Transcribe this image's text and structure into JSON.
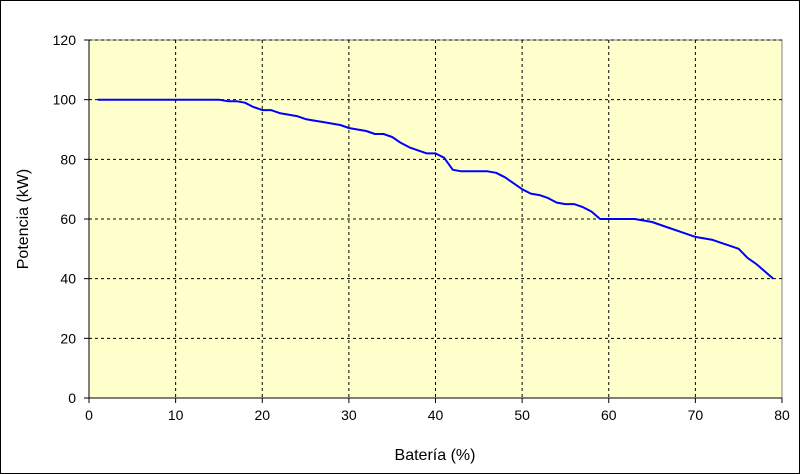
{
  "chart_data": {
    "type": "line",
    "title": "",
    "xlabel": "Batería (%)",
    "ylabel": "Potencia (kW)",
    "xlim": [
      0,
      80
    ],
    "ylim": [
      0,
      120
    ],
    "x_ticks": [
      "0",
      "10",
      "20",
      "30",
      "40",
      "50",
      "60",
      "70",
      "80"
    ],
    "y_ticks": [
      "0",
      "20",
      "40",
      "60",
      "80",
      "100",
      "120"
    ],
    "grid": true,
    "legend": "none",
    "colors": {
      "plot_background": "#FFFFCC",
      "line": "#0000FF",
      "grid": "#000000"
    },
    "series": [
      {
        "x": [
          1,
          5,
          10,
          15,
          16,
          17,
          18,
          19,
          20,
          21,
          22,
          23,
          24,
          25,
          26,
          27,
          28,
          29,
          30,
          31,
          32,
          33,
          34,
          35,
          36,
          37,
          38,
          39,
          40,
          41,
          42,
          43,
          44,
          45,
          46,
          47,
          48,
          49,
          50,
          51,
          52,
          53,
          54,
          55,
          56,
          57,
          58,
          59,
          60,
          61,
          62,
          63,
          64,
          65,
          66,
          67,
          68,
          69,
          70,
          71,
          72,
          73,
          74,
          75,
          76,
          77,
          78,
          79
        ],
        "values": [
          100,
          100,
          100,
          100,
          99.5,
          99.5,
          99,
          97.5,
          96.5,
          96.5,
          95.5,
          95,
          94.5,
          93.5,
          93,
          92.5,
          92,
          91.5,
          90.5,
          90,
          89.5,
          88.5,
          88.5,
          87.5,
          85.5,
          84,
          83,
          82,
          82,
          80.5,
          76.5,
          76,
          76,
          76,
          76,
          75.5,
          74,
          72,
          70,
          68.5,
          68,
          67,
          65.5,
          65,
          65,
          64,
          62.5,
          60,
          60,
          60,
          60,
          60,
          59.5,
          59,
          58,
          57,
          56,
          55,
          54,
          53.5,
          53,
          52,
          51,
          50,
          47,
          45,
          42.5,
          40
        ]
      }
    ]
  }
}
